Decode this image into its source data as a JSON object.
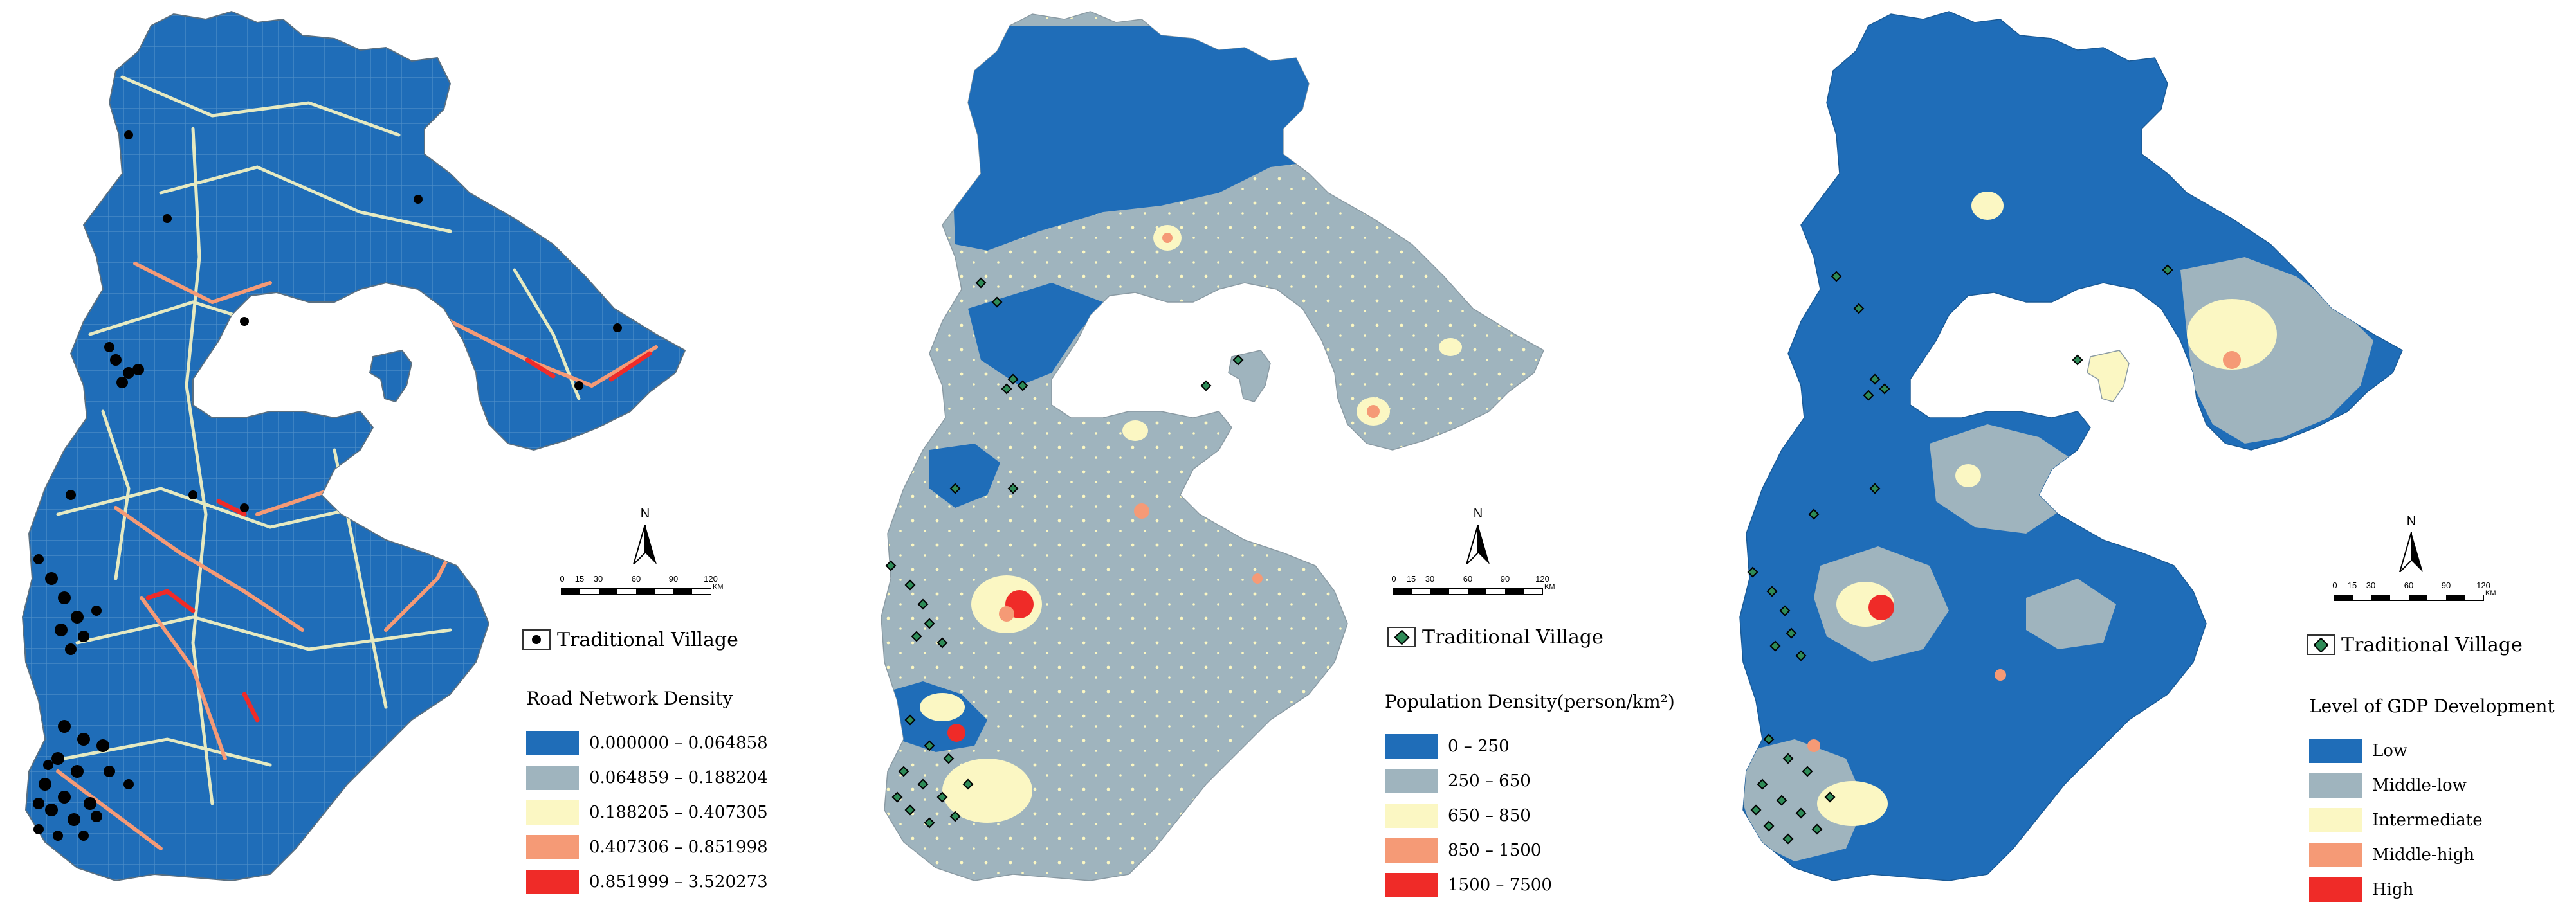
{
  "colors": {
    "class1": "#1f6db8",
    "class2": "#9fb4be",
    "class3": "#fbf7c3",
    "class4": "#f59a76",
    "class5": "#ef2b28"
  },
  "scale": {
    "ticks": [
      "0",
      "15",
      "30",
      "60",
      "90",
      "120"
    ],
    "unit": "KM",
    "north": "N"
  },
  "panels": [
    {
      "village_label": "Traditional Village",
      "marker": "black-dot-icon",
      "legend_title": "Road Network Density",
      "classes": [
        "0.000000 – 0.064858",
        "0.064859 – 0.188204",
        "0.188205 – 0.407305",
        "0.407306 – 0.851998",
        "0.851999 – 3.520273"
      ]
    },
    {
      "village_label": "Traditional Village",
      "marker": "green-diamond-icon",
      "legend_title": "Population Density(person/km²)",
      "classes": [
        "0 – 250",
        "250 – 650",
        "650 – 850",
        "850 – 1500",
        "1500 – 7500"
      ]
    },
    {
      "village_label": "Traditional Village",
      "marker": "green-diamond-icon",
      "legend_title": "Level of GDP Development",
      "classes": [
        "Low",
        "Middle-low",
        "Intermediate",
        "Middle-high",
        "High"
      ]
    }
  ]
}
